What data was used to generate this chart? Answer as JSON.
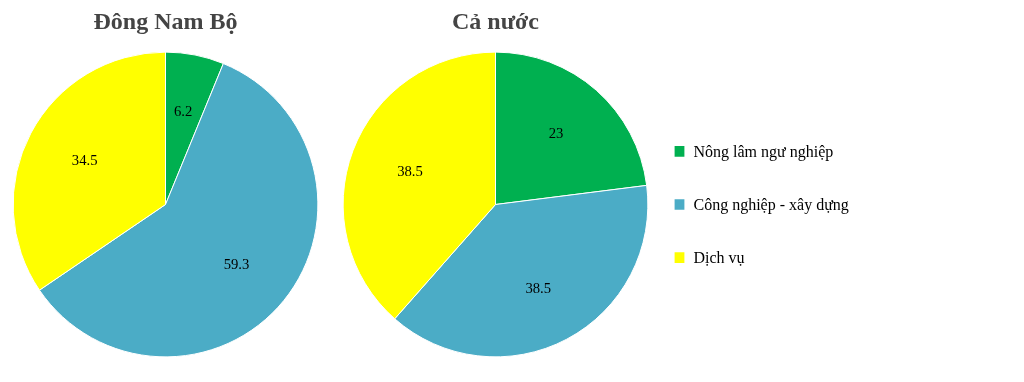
{
  "chart_data": [
    {
      "type": "pie",
      "title": "Đông Nam Bộ",
      "values": [
        6.2,
        59.3,
        34.5
      ],
      "colors": [
        "#00b050",
        "#4bacc6",
        "#ffff00"
      ],
      "data_labels": true
    },
    {
      "type": "pie",
      "title": "Cả nước",
      "categories": [
        "Nông lâm ngư nghiệp",
        "Công nghiệp - xây dựng",
        "Dịch vụ"
      ],
      "values": [
        23,
        38.5,
        38.5
      ],
      "colors": [
        "#00b050",
        "#4bacc6",
        "#ffff00"
      ],
      "data_labels": true,
      "legend": "right"
    }
  ]
}
